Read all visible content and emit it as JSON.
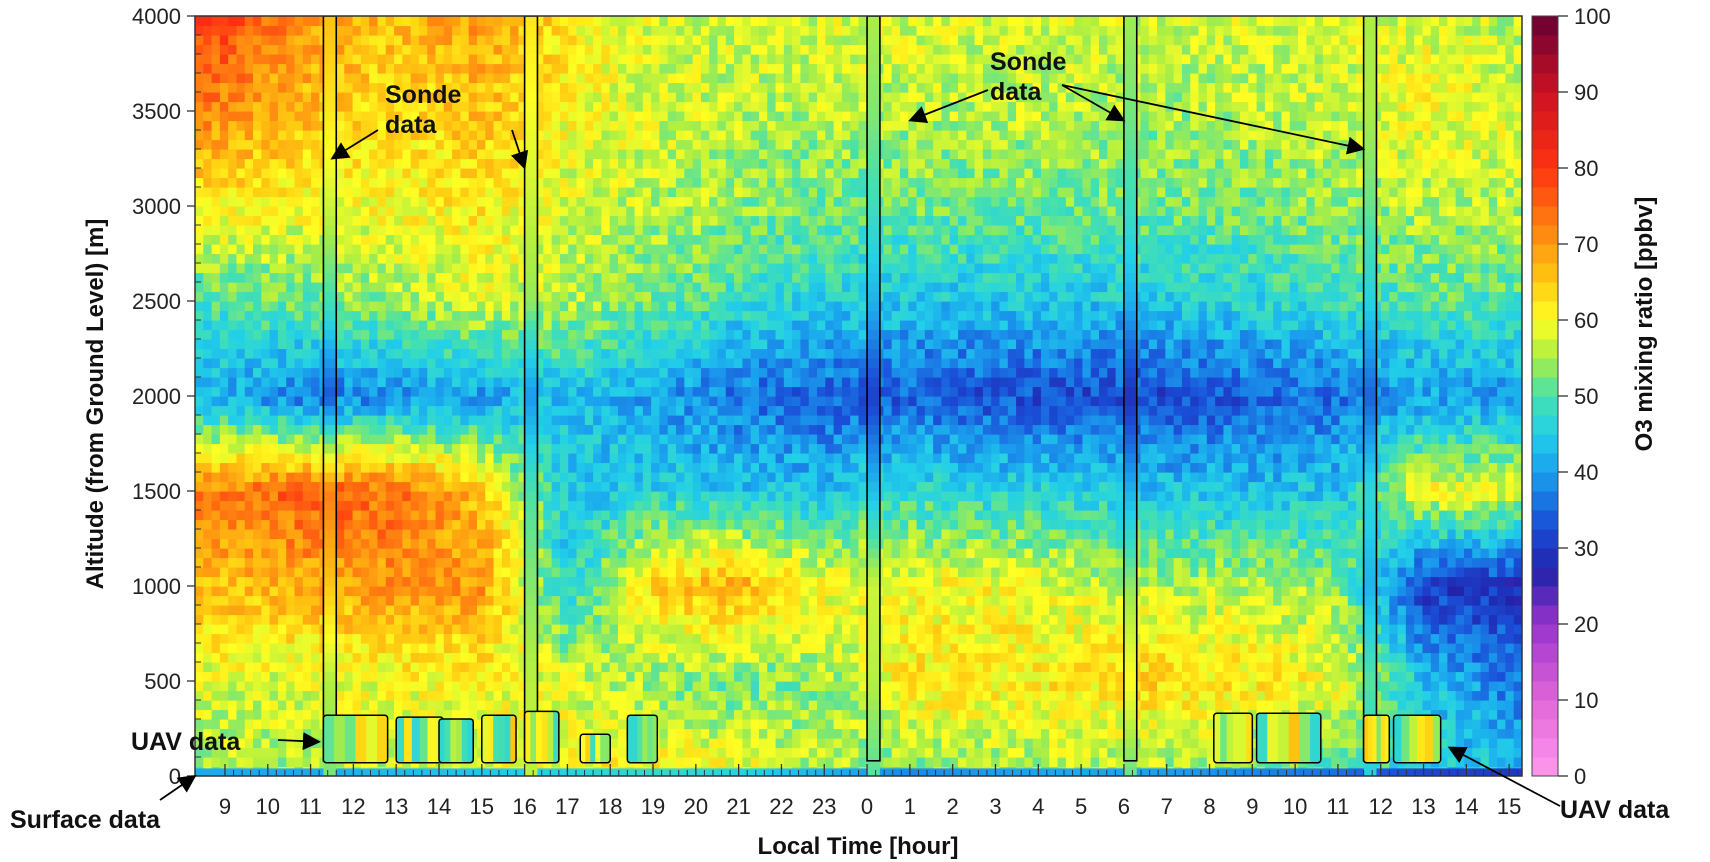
{
  "chart_data": {
    "type": "heatmap",
    "title": "",
    "xlabel": "Local Time [hour]",
    "ylabel": "Altitude (from Ground Level) [m]",
    "colorbar_label": "O3 mixing ratio [ppbv]",
    "x_tick_labels": [
      "9",
      "10",
      "11",
      "12",
      "13",
      "14",
      "15",
      "16",
      "17",
      "18",
      "19",
      "20",
      "21",
      "22",
      "23",
      "0",
      "1",
      "2",
      "3",
      "4",
      "5",
      "6",
      "7",
      "8",
      "9",
      "10",
      "11",
      "12",
      "13",
      "14",
      "15"
    ],
    "x_range_hours_elapsed": [
      8.3,
      39.3
    ],
    "x_first_tick_hour": 9,
    "ylim": [
      0,
      4000
    ],
    "y_ticks": [
      0,
      500,
      1000,
      1500,
      2000,
      2500,
      3000,
      3500,
      4000
    ],
    "colorbar_range": [
      0,
      100
    ],
    "colorbar_ticks": [
      0,
      10,
      20,
      30,
      40,
      50,
      60,
      70,
      80,
      90,
      100
    ],
    "colormap_stops": [
      {
        "value": 0,
        "color": "#ff99ee"
      },
      {
        "value": 10,
        "color": "#e066d8"
      },
      {
        "value": 20,
        "color": "#9933cc"
      },
      {
        "value": 27,
        "color": "#2222aa"
      },
      {
        "value": 33,
        "color": "#1a4fd8"
      },
      {
        "value": 40,
        "color": "#1aa0ee"
      },
      {
        "value": 45,
        "color": "#22d0e8"
      },
      {
        "value": 50,
        "color": "#44e0b0"
      },
      {
        "value": 55,
        "color": "#aaee44"
      },
      {
        "value": 60,
        "color": "#ffff22"
      },
      {
        "value": 65,
        "color": "#ffcc11"
      },
      {
        "value": 70,
        "color": "#ff9911"
      },
      {
        "value": 80,
        "color": "#ff3311"
      },
      {
        "value": 90,
        "color": "#cc1122"
      },
      {
        "value": 100,
        "color": "#660033"
      }
    ],
    "ozone_profiles_ppbv": {
      "altitudes_m": [
        0,
        500,
        1000,
        1500,
        2000,
        2500,
        3000,
        3500,
        4000
      ],
      "columns": [
        {
          "hour": 8.5,
          "values": [
            55,
            58,
            66,
            72,
            42,
            50,
            62,
            72,
            80
          ]
        },
        {
          "hour": 11.0,
          "values": [
            55,
            58,
            68,
            76,
            36,
            52,
            60,
            66,
            70
          ]
        },
        {
          "hour": 13.0,
          "values": [
            57,
            60,
            70,
            74,
            38,
            55,
            60,
            63,
            66
          ]
        },
        {
          "hour": 15.0,
          "values": [
            58,
            60,
            70,
            66,
            40,
            58,
            62,
            66,
            70
          ]
        },
        {
          "hour": 17.0,
          "values": [
            60,
            58,
            46,
            44,
            44,
            56,
            58,
            60,
            62
          ]
        },
        {
          "hour": 19.0,
          "values": [
            62,
            54,
            64,
            46,
            40,
            52,
            56,
            58,
            58
          ]
        },
        {
          "hour": 21.0,
          "values": [
            60,
            52,
            68,
            44,
            36,
            48,
            54,
            56,
            58
          ]
        },
        {
          "hour": 23.0,
          "values": [
            56,
            54,
            60,
            44,
            34,
            46,
            52,
            56,
            58
          ]
        },
        {
          "hour": 25.0,
          "values": [
            52,
            62,
            60,
            48,
            34,
            44,
            52,
            56,
            58
          ]
        },
        {
          "hour": 27.0,
          "values": [
            54,
            62,
            60,
            46,
            33,
            44,
            52,
            56,
            58
          ]
        },
        {
          "hour": 29.0,
          "values": [
            55,
            62,
            58,
            46,
            32,
            44,
            52,
            56,
            58
          ]
        },
        {
          "hour": 31.0,
          "values": [
            54,
            64,
            56,
            44,
            32,
            45,
            52,
            55,
            57
          ]
        },
        {
          "hour": 33.0,
          "values": [
            52,
            62,
            56,
            44,
            34,
            46,
            52,
            56,
            58
          ]
        },
        {
          "hour": 35.0,
          "values": [
            50,
            60,
            54,
            44,
            36,
            48,
            54,
            57,
            58
          ]
        },
        {
          "hour": 37.0,
          "values": [
            46,
            44,
            30,
            60,
            40,
            50,
            56,
            60,
            58
          ]
        },
        {
          "hour": 39.3,
          "values": [
            44,
            36,
            28,
            58,
            40,
            50,
            56,
            58,
            56
          ]
        }
      ]
    },
    "sonde_columns_hours": [
      {
        "start": 11.3,
        "end": 11.6
      },
      {
        "start": 16.0,
        "end": 16.3
      },
      {
        "start": 24.0,
        "end": 24.3
      },
      {
        "start": 30.0,
        "end": 30.3
      },
      {
        "start": 35.6,
        "end": 35.9
      }
    ],
    "uav_boxes": [
      {
        "start": 11.3,
        "end": 12.8,
        "top_m": 320
      },
      {
        "start": 13.0,
        "end": 14.1,
        "top_m": 310
      },
      {
        "start": 14.0,
        "end": 14.8,
        "top_m": 300
      },
      {
        "start": 15.0,
        "end": 15.8,
        "top_m": 320
      },
      {
        "start": 16.0,
        "end": 16.8,
        "top_m": 340
      },
      {
        "start": 17.3,
        "end": 18.0,
        "top_m": 220
      },
      {
        "start": 18.4,
        "end": 19.1,
        "top_m": 320
      },
      {
        "start": 32.1,
        "end": 33.0,
        "top_m": 330
      },
      {
        "start": 33.1,
        "end": 34.6,
        "top_m": 330
      },
      {
        "start": 35.6,
        "end": 36.2,
        "top_m": 320
      },
      {
        "start": 36.3,
        "end": 37.4,
        "top_m": 320
      }
    ],
    "annotations": [
      {
        "text": "Sonde data",
        "lines": [
          "Sonde",
          "data"
        ],
        "pointer_hours": [
          11.5,
          16.0
        ]
      },
      {
        "text": "Sonde data",
        "lines": [
          "Sonde",
          "data"
        ],
        "pointer_hours": [
          25.0,
          30.0,
          35.6
        ]
      },
      {
        "text": "UAV data",
        "lines": [
          "UAV data"
        ],
        "pointer_hours": [
          11.2
        ]
      },
      {
        "text": "Surface data",
        "lines": [
          "Surface data"
        ],
        "pointer_hours": [
          8.3
        ]
      },
      {
        "text": "UAV data",
        "lines": [
          "UAV data"
        ],
        "pointer_hours": [
          37.6
        ]
      }
    ]
  }
}
